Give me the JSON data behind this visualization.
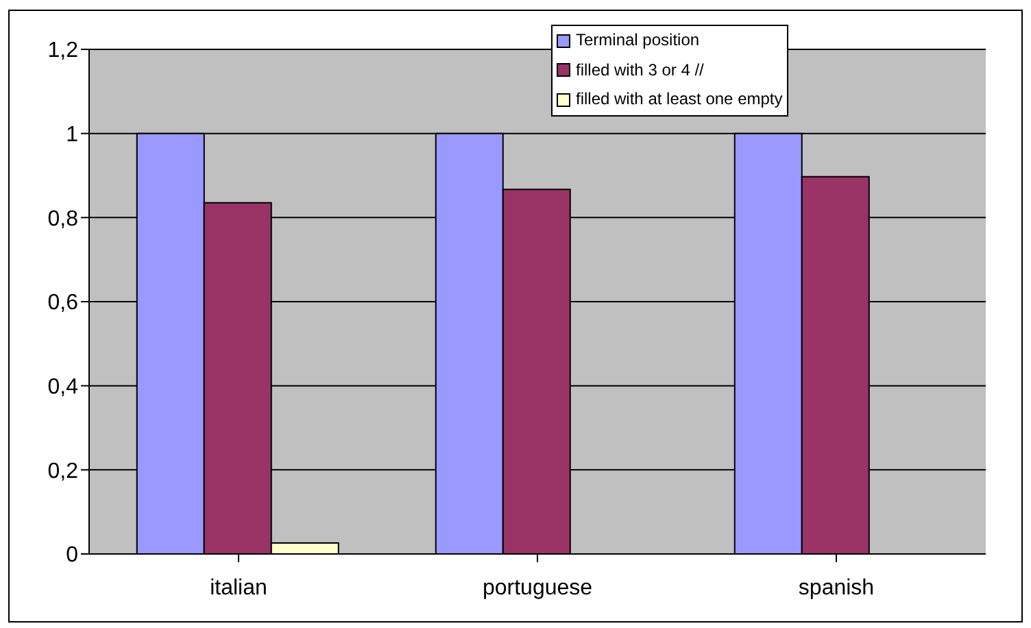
{
  "chart_data": {
    "type": "bar",
    "categories": [
      "italian",
      "portuguese",
      "spanish"
    ],
    "series": [
      {
        "name": "Terminal position",
        "color": "#9999ff",
        "values": [
          1,
          1,
          1
        ]
      },
      {
        "name": "filled with 3 or 4 //",
        "color": "#993366",
        "values": [
          0.835,
          0.867,
          0.897
        ]
      },
      {
        "name": "filled with at least one empty",
        "color": "#ffffcc",
        "values": [
          0.026,
          0,
          0
        ]
      }
    ],
    "ylim": [
      0,
      1.2
    ],
    "yticks": [
      {
        "value": 0,
        "label": "0"
      },
      {
        "value": 0.2,
        "label": "0,2"
      },
      {
        "value": 0.4,
        "label": "0,4"
      },
      {
        "value": 0.6,
        "label": "0,6"
      },
      {
        "value": 0.8,
        "label": "0,8"
      },
      {
        "value": 1,
        "label": "1"
      },
      {
        "value": 1.2,
        "label": "1,2"
      }
    ],
    "grid": "y",
    "legend": "top"
  }
}
